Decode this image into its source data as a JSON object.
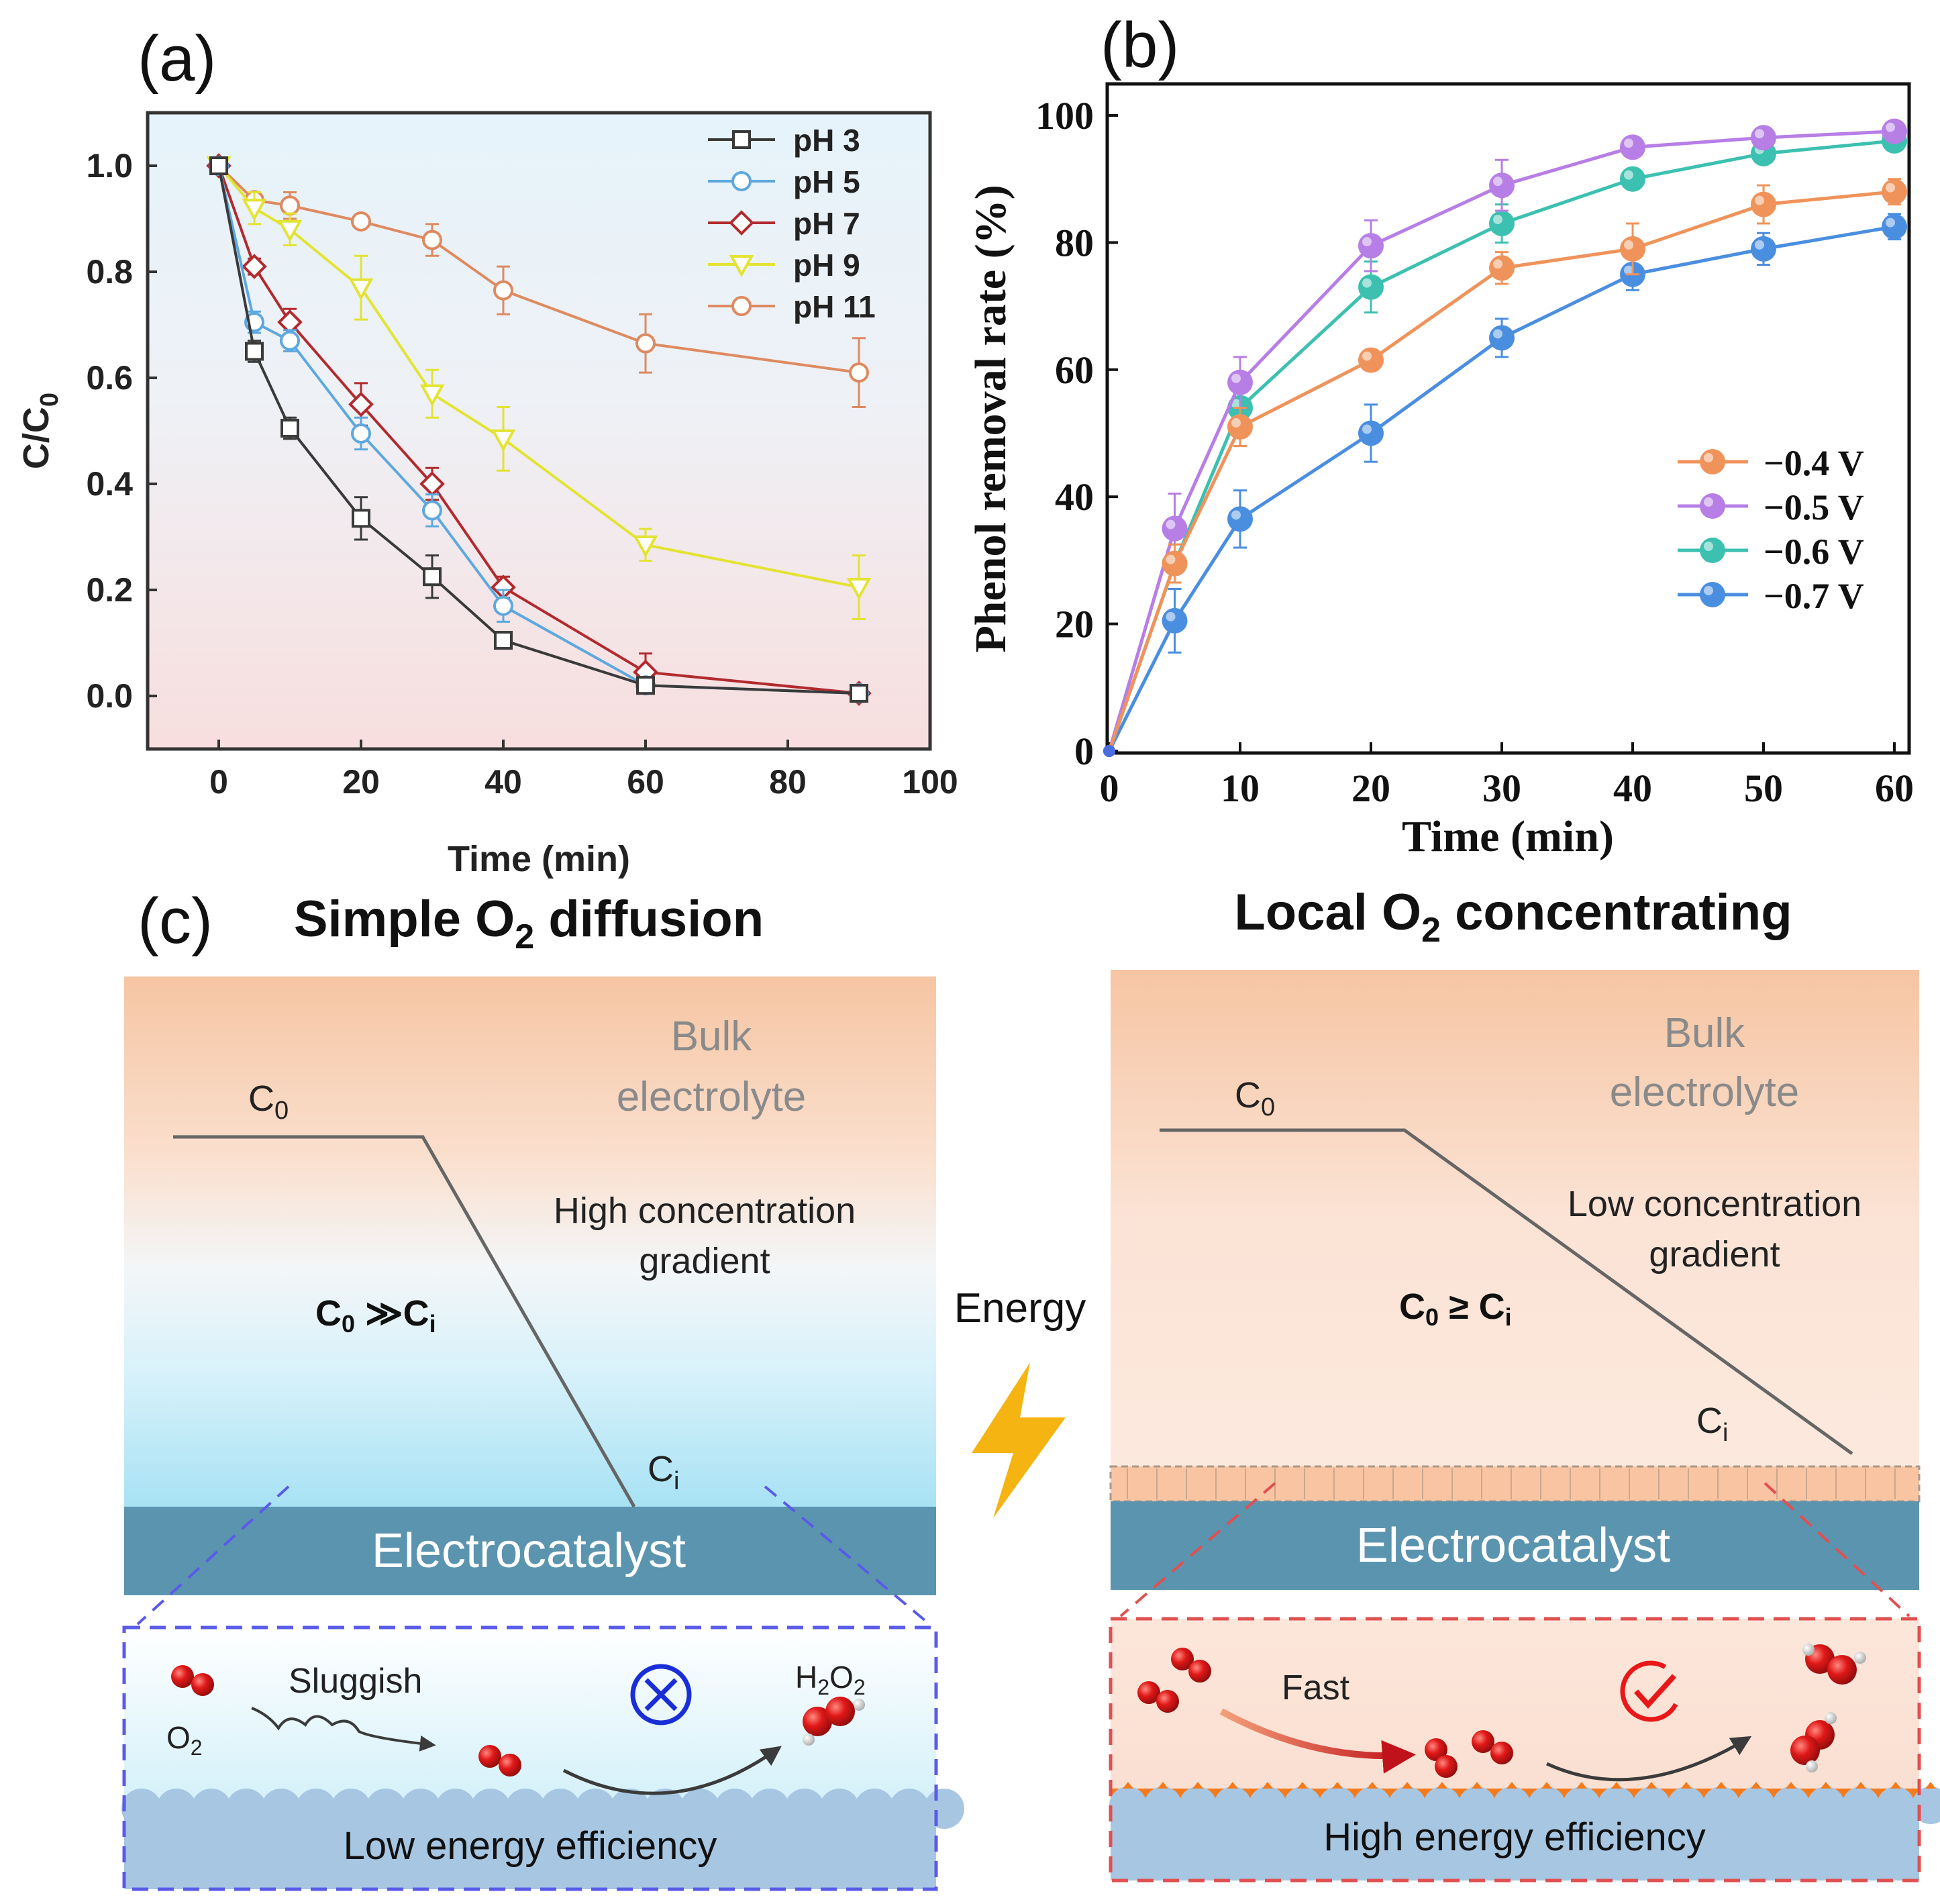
{
  "chart_data": [
    {
      "type": "line",
      "panel_label": "(a)",
      "xlabel": "Time (min)",
      "ylabel_main": "C/C",
      "ylabel_sub": "0",
      "xlim": [
        -10,
        100
      ],
      "ylim": [
        -0.1,
        1.1
      ],
      "xticks": [
        0,
        20,
        40,
        60,
        80,
        100
      ],
      "yticks": [
        0.0,
        0.2,
        0.4,
        0.6,
        0.8,
        1.0
      ],
      "xtick_labels": [
        "0",
        "20",
        "40",
        "60",
        "80",
        "100"
      ],
      "ytick_labels": [
        "0.0",
        "0.2",
        "0.4",
        "0.6",
        "0.8",
        "1.0"
      ],
      "legend_position": "top-right",
      "x": [
        0,
        5,
        10,
        20,
        30,
        40,
        60,
        90
      ],
      "series": [
        {
          "name": "pH 3",
          "marker": "square",
          "color": "#3a3a3a",
          "values": [
            1.0,
            0.65,
            0.505,
            0.335,
            0.225,
            0.105,
            0.02,
            0.005
          ],
          "errors": [
            0,
            0.02,
            0.02,
            0.04,
            0.04,
            0.01,
            0.01,
            0.01
          ]
        },
        {
          "name": "pH 5",
          "marker": "circle",
          "color": "#5ea8de",
          "values": [
            1.0,
            0.705,
            0.67,
            0.495,
            0.35,
            0.17,
            0.02,
            0.005
          ],
          "errors": [
            0,
            0.02,
            0.02,
            0.03,
            0.03,
            0.03,
            0.01,
            0.01
          ]
        },
        {
          "name": "pH 7",
          "marker": "diamond",
          "color": "#b22a2e",
          "values": [
            1.0,
            0.81,
            0.705,
            0.55,
            0.4,
            0.205,
            0.045,
            0.005
          ],
          "errors": [
            0,
            0.015,
            0.025,
            0.04,
            0.03,
            0.02,
            0.035,
            0.01
          ]
        },
        {
          "name": "pH 9",
          "marker": "triangle-down",
          "color": "#e3e332",
          "values": [
            1.0,
            0.92,
            0.88,
            0.77,
            0.57,
            0.485,
            0.285,
            0.205
          ],
          "errors": [
            0,
            0.03,
            0.03,
            0.06,
            0.045,
            0.06,
            0.03,
            0.06
          ]
        },
        {
          "name": "pH 11",
          "marker": "circle",
          "color": "#de8a60",
          "values": [
            1.0,
            0.935,
            0.925,
            0.895,
            0.86,
            0.765,
            0.665,
            0.61
          ],
          "errors": [
            0,
            0.015,
            0.025,
            0.01,
            0.03,
            0.045,
            0.055,
            0.065
          ]
        }
      ]
    },
    {
      "type": "line",
      "panel_label": "(b)",
      "xlabel": "Time (min)",
      "ylabel": "Phenol removal rate (%)",
      "xlim": [
        0,
        60
      ],
      "ylim": [
        0,
        100
      ],
      "xticks": [
        0,
        10,
        20,
        30,
        40,
        50,
        60
      ],
      "yticks": [
        0,
        20,
        40,
        60,
        80,
        100
      ],
      "xtick_labels": [
        "0",
        "10",
        "20",
        "30",
        "40",
        "50",
        "60"
      ],
      "ytick_labels": [
        "0",
        "20",
        "40",
        "60",
        "80",
        "100"
      ],
      "legend_position": "center-right",
      "x": [
        0,
        5,
        10,
        20,
        30,
        40,
        50,
        60
      ],
      "series": [
        {
          "name": "−0.4 V",
          "color": "#f0935a",
          "values": [
            0,
            29.5,
            51,
            61.5,
            76,
            79,
            86,
            88
          ],
          "errors": [
            0,
            3,
            3,
            1.5,
            2.5,
            4,
            3,
            2
          ]
        },
        {
          "name": "−0.5 V",
          "color": "#b77ee6",
          "values": [
            0,
            35,
            58,
            79.5,
            89,
            95,
            96.5,
            97.5
          ],
          "errors": [
            0,
            5.5,
            4,
            4,
            4,
            1.5,
            1.5,
            1.5
          ]
        },
        {
          "name": "−0.6 V",
          "color": "#3cc0b0",
          "values": [
            0,
            29.5,
            54,
            73,
            83,
            90,
            94,
            96
          ],
          "errors": [
            0,
            3,
            3,
            4,
            3,
            1.5,
            1.5,
            1.5
          ]
        },
        {
          "name": "−0.7 V",
          "color": "#4a8ee0",
          "values": [
            0,
            20.5,
            36.5,
            50,
            65,
            75,
            79,
            82.5
          ],
          "errors": [
            0,
            5,
            4.5,
            4.5,
            3,
            2.5,
            2.5,
            2
          ]
        }
      ]
    }
  ],
  "diagram": {
    "panel_label": "(c)",
    "energy_label": "Energy",
    "left": {
      "title_main": "Simple O",
      "title_sub": "2",
      "title_rest": " diffusion",
      "bulk_line1": "Bulk",
      "bulk_line2": "electrolyte",
      "c0_main": "C",
      "c0_sub": "0",
      "ci_main": "C",
      "ci_sub": "i",
      "gradient_line1": "High concentration",
      "gradient_line2": "gradient",
      "relation_c": "C",
      "relation_c0_sub": "0",
      "relation_op": " ≫C",
      "relation_ci_sub": "i",
      "electrocatalyst": "Electrocatalyst",
      "sluggish": "Sluggish",
      "o2_main": "O",
      "o2_sub": "2",
      "h2o2_h": "H",
      "h2o2_h_sub": "2",
      "h2o2_o": "O",
      "h2o2_o_sub": "2",
      "efficiency": "Low energy efficiency"
    },
    "right": {
      "title_main": "Local O",
      "title_sub": "2",
      "title_rest": " concentrating",
      "bulk_line1": "Bulk",
      "bulk_line2": "electrolyte",
      "c0_main": "C",
      "c0_sub": "0",
      "ci_main": "C",
      "ci_sub": "i",
      "gradient_line1": "Low concentration",
      "gradient_line2": "gradient",
      "relation_c": "C",
      "relation_c0_sub": "0",
      "relation_op": " ≥ C",
      "relation_ci_sub": "i",
      "electrocatalyst": "Electrocatalyst",
      "fast": "Fast",
      "efficiency": "High energy efficiency"
    }
  }
}
